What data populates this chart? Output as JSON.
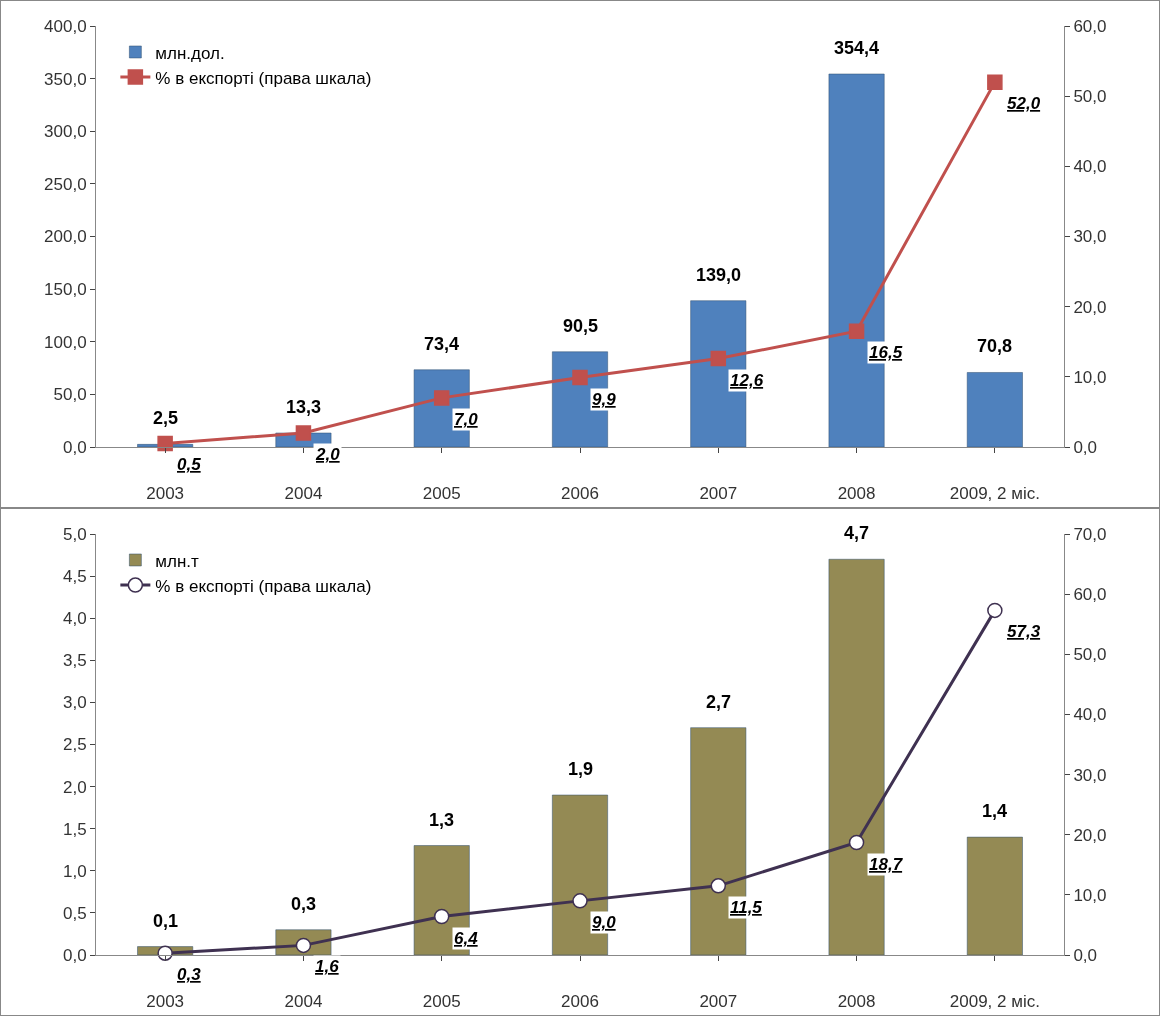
{
  "chart_data": [
    {
      "type": "bar",
      "categories": [
        "2003",
        "2004",
        "2005",
        "2006",
        "2007",
        "2008",
        "2009, 2 міс."
      ],
      "series": [
        {
          "name": "млн.дол.",
          "color": "#4f81bd",
          "values": [
            2.5,
            13.3,
            73.4,
            90.5,
            139.0,
            354.4,
            70.8
          ],
          "value_labels": [
            "2,5",
            "13,3",
            "73,4",
            "90,5",
            "139,0",
            "354,4",
            "70,8"
          ]
        },
        {
          "name": "% в експорті (права шкала)",
          "type": "line",
          "axis": "y2",
          "color": "#c0504d",
          "marker": "square",
          "values": [
            0.5,
            2.0,
            7.0,
            9.9,
            12.6,
            16.5,
            52.0
          ],
          "value_labels": [
            "0,5",
            "2,0",
            "7,0",
            "9,9",
            "12,6",
            "16,5",
            "52,0"
          ]
        }
      ],
      "ylim": [
        0,
        400
      ],
      "yticks": [
        {
          "value": 0,
          "label": "0,0"
        },
        {
          "value": 50,
          "label": "50,0"
        },
        {
          "value": 100,
          "label": "100,0"
        },
        {
          "value": 150,
          "label": "150,0"
        },
        {
          "value": 200,
          "label": "200,0"
        },
        {
          "value": 250,
          "label": "250,0"
        },
        {
          "value": 300,
          "label": "300,0"
        },
        {
          "value": 350,
          "label": "350,0"
        },
        {
          "value": 400,
          "label": "400,0"
        }
      ],
      "y2lim": [
        0,
        60
      ],
      "y2ticks": [
        {
          "value": 0,
          "label": "0,0"
        },
        {
          "value": 10,
          "label": "10,0"
        },
        {
          "value": 20,
          "label": "20,0"
        },
        {
          "value": 30,
          "label": "30,0"
        },
        {
          "value": 40,
          "label": "40,0"
        },
        {
          "value": 50,
          "label": "50,0"
        },
        {
          "value": 60,
          "label": "60,0"
        }
      ],
      "legend": "top left",
      "grid": false
    },
    {
      "type": "bar",
      "categories": [
        "2003",
        "2004",
        "2005",
        "2006",
        "2007",
        "2008",
        "2009, 2 міс."
      ],
      "series": [
        {
          "name": "млн.т",
          "color": "#948a54",
          "values": [
            0.1,
            0.3,
            1.3,
            1.9,
            2.7,
            4.7,
            1.4
          ],
          "value_labels": [
            "0,1",
            "0,3",
            "1,3",
            "1,9",
            "2,7",
            "4,7",
            "1,4"
          ]
        },
        {
          "name": "% в експорті (права шкала)",
          "type": "line",
          "axis": "y2",
          "color": "#3f3151",
          "marker": "circle",
          "values": [
            0.3,
            1.6,
            6.4,
            9.0,
            11.5,
            18.7,
            57.3
          ],
          "value_labels": [
            "0,3",
            "1,6",
            "6,4",
            "9,0",
            "11,5",
            "18,7",
            "57,3"
          ]
        }
      ],
      "ylim": [
        0,
        5
      ],
      "yticks": [
        {
          "value": 0,
          "label": "0,0"
        },
        {
          "value": 0.5,
          "label": "0,5"
        },
        {
          "value": 1,
          "label": "1,0"
        },
        {
          "value": 1.5,
          "label": "1,5"
        },
        {
          "value": 2,
          "label": "2,0"
        },
        {
          "value": 2.5,
          "label": "2,5"
        },
        {
          "value": 3,
          "label": "3,0"
        },
        {
          "value": 3.5,
          "label": "3,5"
        },
        {
          "value": 4,
          "label": "4,0"
        },
        {
          "value": 4.5,
          "label": "4,5"
        },
        {
          "value": 5,
          "label": "5,0"
        }
      ],
      "y2lim": [
        0,
        70
      ],
      "y2ticks": [
        {
          "value": 0,
          "label": "0,0"
        },
        {
          "value": 10,
          "label": "10,0"
        },
        {
          "value": 20,
          "label": "20,0"
        },
        {
          "value": 30,
          "label": "30,0"
        },
        {
          "value": 40,
          "label": "40,0"
        },
        {
          "value": 50,
          "label": "50,0"
        },
        {
          "value": 60,
          "label": "60,0"
        },
        {
          "value": 70,
          "label": "70,0"
        }
      ],
      "legend": "top left",
      "grid": false
    }
  ]
}
